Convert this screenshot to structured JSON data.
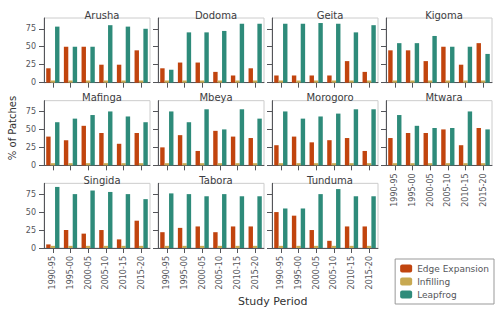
{
  "chart_data": {
    "type": "bar",
    "xlabel": "Study Period",
    "ylabel": "% of Patches",
    "categories": [
      "1990-95",
      "1995-00",
      "2000-05",
      "2005-10",
      "2010-15",
      "2015-20"
    ],
    "ylim": [
      0,
      90
    ],
    "yticks": [
      0,
      25,
      50,
      75
    ],
    "grid": false,
    "legend": "lower right",
    "panels": [
      {
        "title": "Arusha",
        "series": [
          {
            "name": "Edge Expansion",
            "color": "#C1440E",
            "values": [
              20,
              50,
              50,
              25,
              25,
              45
            ]
          },
          {
            "name": "Infilling",
            "color": "#C8A951",
            "values": [
              3,
              3,
              3,
              3,
              3,
              3
            ]
          },
          {
            "name": "Leapfrog",
            "color": "#2E8B7A",
            "values": [
              78,
              50,
              50,
              80,
              78,
              75
            ]
          }
        ]
      },
      {
        "title": "Dodoma",
        "series": [
          {
            "name": "Edge Expansion",
            "color": "#C1440E",
            "values": [
              20,
              28,
              28,
              15,
              10,
              20
            ]
          },
          {
            "name": "Infilling",
            "color": "#C8A951",
            "values": [
              3,
              3,
              3,
              3,
              3,
              3
            ]
          },
          {
            "name": "Leapfrog",
            "color": "#2E8B7A",
            "values": [
              18,
              70,
              70,
              72,
              82,
              82
            ]
          }
        ]
      },
      {
        "title": "Geita",
        "series": [
          {
            "name": "Edge Expansion",
            "color": "#C1440E",
            "values": [
              10,
              10,
              10,
              10,
              30,
              15
            ]
          },
          {
            "name": "Infilling",
            "color": "#C8A951",
            "values": [
              3,
              3,
              3,
              3,
              3,
              3
            ]
          },
          {
            "name": "Leapfrog",
            "color": "#2E8B7A",
            "values": [
              82,
              82,
              83,
              82,
              70,
              80
            ]
          }
        ]
      },
      {
        "title": "Kigoma",
        "series": [
          {
            "name": "Edge Expansion",
            "color": "#C1440E",
            "values": [
              45,
              45,
              30,
              50,
              25,
              55
            ]
          },
          {
            "name": "Infilling",
            "color": "#C8A951",
            "values": [
              3,
              3,
              3,
              3,
              3,
              3
            ]
          },
          {
            "name": "Leapfrog",
            "color": "#2E8B7A",
            "values": [
              55,
              55,
              65,
              50,
              50,
              40
            ]
          }
        ]
      },
      {
        "title": "Mafinga",
        "series": [
          {
            "name": "Edge Expansion",
            "color": "#C1440E",
            "values": [
              40,
              35,
              55,
              45,
              30,
              45
            ]
          },
          {
            "name": "Infilling",
            "color": "#C8A951",
            "values": [
              3,
              3,
              3,
              3,
              3,
              3
            ]
          },
          {
            "name": "Leapfrog",
            "color": "#2E8B7A",
            "values": [
              60,
              65,
              70,
              75,
              68,
              60
            ]
          }
        ]
      },
      {
        "title": "Mbeya",
        "series": [
          {
            "name": "Edge Expansion",
            "color": "#C1440E",
            "values": [
              25,
              42,
              20,
              48,
              40,
              38
            ]
          },
          {
            "name": "Infilling",
            "color": "#C8A951",
            "values": [
              3,
              3,
              3,
              3,
              3,
              3
            ]
          },
          {
            "name": "Leapfrog",
            "color": "#2E8B7A",
            "values": [
              75,
              60,
              78,
              50,
              78,
              65
            ]
          }
        ]
      },
      {
        "title": "Morogoro",
        "series": [
          {
            "name": "Edge Expansion",
            "color": "#C1440E",
            "values": [
              28,
              40,
              32,
              35,
              38,
              20
            ]
          },
          {
            "name": "Infilling",
            "color": "#C8A951",
            "values": [
              3,
              3,
              3,
              3,
              3,
              3
            ]
          },
          {
            "name": "Leapfrog",
            "color": "#2E8B7A",
            "values": [
              75,
              65,
              68,
              72,
              78,
              78
            ]
          }
        ]
      },
      {
        "title": "Mtwara",
        "series": [
          {
            "name": "Edge Expansion",
            "color": "#C1440E",
            "values": [
              38,
              45,
              45,
              50,
              28,
              52
            ]
          },
          {
            "name": "Infilling",
            "color": "#C8A951",
            "values": [
              3,
              3,
              3,
              3,
              3,
              3
            ]
          },
          {
            "name": "Leapfrog",
            "color": "#2E8B7A",
            "values": [
              70,
              55,
              52,
              52,
              75,
              50
            ]
          }
        ]
      },
      {
        "title": "Singida",
        "series": [
          {
            "name": "Edge Expansion",
            "color": "#C1440E",
            "values": [
              5,
              25,
              20,
              25,
              12,
              38
            ]
          },
          {
            "name": "Infilling",
            "color": "#C8A951",
            "values": [
              3,
              3,
              3,
              3,
              3,
              3
            ]
          },
          {
            "name": "Leapfrog",
            "color": "#2E8B7A",
            "values": [
              85,
              75,
              80,
              78,
              75,
              68
            ]
          }
        ]
      },
      {
        "title": "Tabora",
        "series": [
          {
            "name": "Edge Expansion",
            "color": "#C1440E",
            "values": [
              22,
              28,
              30,
              22,
              30,
              30
            ]
          },
          {
            "name": "Infilling",
            "color": "#C8A951",
            "values": [
              3,
              3,
              3,
              3,
              3,
              3
            ]
          },
          {
            "name": "Leapfrog",
            "color": "#2E8B7A",
            "values": [
              76,
              75,
              72,
              75,
              72,
              72
            ]
          }
        ]
      },
      {
        "title": "Tunduma",
        "series": [
          {
            "name": "Edge Expansion",
            "color": "#C1440E",
            "values": [
              50,
              45,
              25,
              10,
              30,
              30
            ]
          },
          {
            "name": "Infilling",
            "color": "#C8A951",
            "values": [
              3,
              3,
              3,
              3,
              3,
              3
            ]
          },
          {
            "name": "Leapfrog",
            "color": "#2E8B7A",
            "values": [
              55,
              55,
              75,
              82,
              72,
              72
            ]
          }
        ]
      }
    ]
  }
}
